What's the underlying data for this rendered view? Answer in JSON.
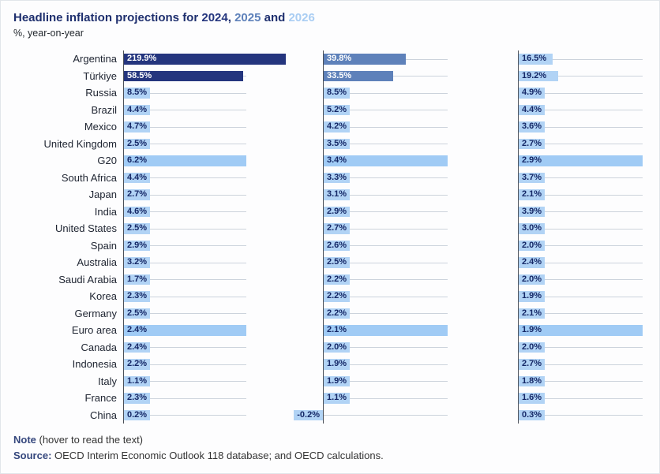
{
  "title": {
    "prefix": "Headline inflation projections for ",
    "year_2024": "2024",
    "sep1": ", ",
    "year_2025": "2025",
    "sep2": " and ",
    "year_2026": "2026"
  },
  "subtitle": "%, year-on-year",
  "note": {
    "label": "Note",
    "text": " (hover to read the text)"
  },
  "source": {
    "label": "Source:",
    "text": " OECD Interim Economic Outlook 118 database; and OECD calculations."
  },
  "colors": {
    "year_2024_bar": "#24357e",
    "year_2025_bar": "#5e81ba",
    "year_2026_bar": "#a9cdf3",
    "value_chip": "#b1d3f5",
    "highlight_row": "#a0cbf5",
    "value_text": "#152867",
    "title_navy": "#1e2f6e"
  },
  "chart_data": {
    "type": "bar",
    "orientation": "horizontal",
    "title": "Headline inflation projections for 2024, 2025 and 2026",
    "ylabel": "%, year-on-year",
    "panels": [
      "2024",
      "2025",
      "2026"
    ],
    "legend_position": "in-title",
    "grid": "row-lines",
    "highlighted_rows": [
      "G20",
      "Euro area"
    ],
    "axis_max_percent_per_panel": 60,
    "categories": [
      "Argentina",
      "Türkiye",
      "Russia",
      "Brazil",
      "Mexico",
      "United Kingdom",
      "G20",
      "South Africa",
      "Japan",
      "India",
      "United States",
      "Spain",
      "Australia",
      "Saudi Arabia",
      "Korea",
      "Germany",
      "Euro area",
      "Canada",
      "Indonesia",
      "Italy",
      "France",
      "China"
    ],
    "series": [
      {
        "name": "2024",
        "values": [
          219.9,
          58.5,
          8.5,
          4.4,
          4.7,
          2.5,
          6.2,
          4.4,
          2.7,
          4.6,
          2.5,
          2.9,
          3.2,
          1.7,
          2.3,
          2.5,
          2.4,
          2.4,
          2.2,
          1.1,
          2.3,
          0.2
        ]
      },
      {
        "name": "2025",
        "values": [
          39.8,
          33.5,
          8.5,
          5.2,
          4.2,
          3.5,
          3.4,
          3.3,
          3.1,
          2.9,
          2.7,
          2.6,
          2.5,
          2.2,
          2.2,
          2.2,
          2.1,
          2.0,
          1.9,
          1.9,
          1.1,
          -0.2
        ]
      },
      {
        "name": "2026",
        "values": [
          16.5,
          19.2,
          4.9,
          4.4,
          3.6,
          2.7,
          2.9,
          3.7,
          2.1,
          3.9,
          3.0,
          2.0,
          2.4,
          2.0,
          1.9,
          2.1,
          1.9,
          2.0,
          2.7,
          1.8,
          1.6,
          0.3
        ]
      }
    ]
  }
}
